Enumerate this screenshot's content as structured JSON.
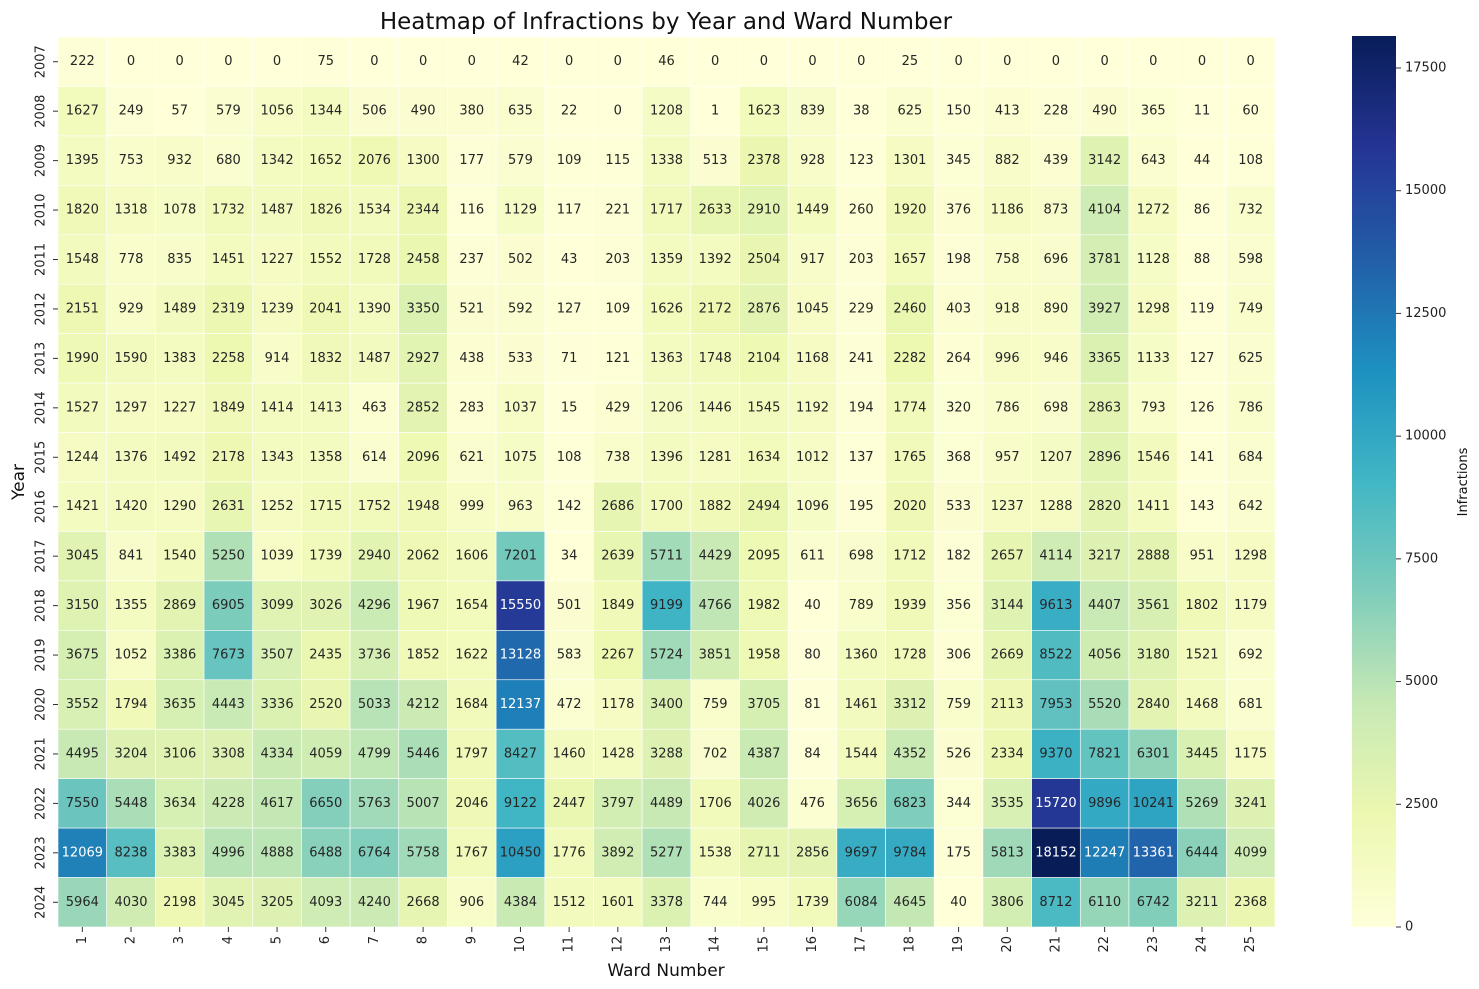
{
  "chart_data": {
    "type": "heatmap",
    "title": "Heatmap of Infractions by Year and Ward Number",
    "xlabel": "Ward Number",
    "ylabel": "Year",
    "colorbar_label": "Infractions",
    "colormap": "YlGnBu",
    "vmin": 0,
    "vmax": 18152,
    "colorbar_ticks": [
      0,
      2500,
      5000,
      7500,
      10000,
      12500,
      15000,
      17500
    ],
    "x_categories": [
      "1",
      "2",
      "3",
      "4",
      "5",
      "6",
      "7",
      "8",
      "9",
      "10",
      "11",
      "12",
      "13",
      "14",
      "15",
      "16",
      "17",
      "18",
      "19",
      "20",
      "21",
      "22",
      "23",
      "24",
      "25"
    ],
    "y_categories": [
      "2007",
      "2008",
      "2009",
      "2010",
      "2011",
      "2012",
      "2013",
      "2014",
      "2015",
      "2016",
      "2017",
      "2018",
      "2019",
      "2020",
      "2021",
      "2022",
      "2023",
      "2024"
    ],
    "values": [
      [
        222,
        0,
        0,
        0,
        0,
        75,
        0,
        0,
        0,
        42,
        0,
        0,
        46,
        0,
        0,
        0,
        0,
        25,
        0,
        0,
        0,
        0,
        0,
        0,
        0
      ],
      [
        1627,
        249,
        57,
        579,
        1056,
        1344,
        506,
        490,
        380,
        635,
        22,
        0,
        1208,
        1,
        1623,
        839,
        38,
        625,
        150,
        413,
        228,
        490,
        365,
        11,
        60
      ],
      [
        1395,
        753,
        932,
        680,
        1342,
        1652,
        2076,
        1300,
        177,
        579,
        109,
        115,
        1338,
        513,
        2378,
        928,
        123,
        1301,
        345,
        882,
        439,
        3142,
        643,
        44,
        108
      ],
      [
        1820,
        1318,
        1078,
        1732,
        1487,
        1826,
        1534,
        2344,
        116,
        1129,
        117,
        221,
        1717,
        2633,
        2910,
        1449,
        260,
        1920,
        376,
        1186,
        873,
        4104,
        1272,
        86,
        732
      ],
      [
        1548,
        778,
        835,
        1451,
        1227,
        1552,
        1728,
        2458,
        237,
        502,
        43,
        203,
        1359,
        1392,
        2504,
        917,
        203,
        1657,
        198,
        758,
        696,
        3781,
        1128,
        88,
        598
      ],
      [
        2151,
        929,
        1489,
        2319,
        1239,
        2041,
        1390,
        3350,
        521,
        592,
        127,
        109,
        1626,
        2172,
        2876,
        1045,
        229,
        2460,
        403,
        918,
        890,
        3927,
        1298,
        119,
        749
      ],
      [
        1990,
        1590,
        1383,
        2258,
        914,
        1832,
        1487,
        2927,
        438,
        533,
        71,
        121,
        1363,
        1748,
        2104,
        1168,
        241,
        2282,
        264,
        996,
        946,
        3365,
        1133,
        127,
        625
      ],
      [
        1527,
        1297,
        1227,
        1849,
        1414,
        1413,
        463,
        2852,
        283,
        1037,
        15,
        429,
        1206,
        1446,
        1545,
        1192,
        194,
        1774,
        320,
        786,
        698,
        2863,
        793,
        126,
        786
      ],
      [
        1244,
        1376,
        1492,
        2178,
        1343,
        1358,
        614,
        2096,
        621,
        1075,
        108,
        738,
        1396,
        1281,
        1634,
        1012,
        137,
        1765,
        368,
        957,
        1207,
        2896,
        1546,
        141,
        684
      ],
      [
        1421,
        1420,
        1290,
        2631,
        1252,
        1715,
        1752,
        1948,
        999,
        963,
        142,
        2686,
        1700,
        1882,
        2494,
        1096,
        195,
        2020,
        533,
        1237,
        1288,
        2820,
        1411,
        143,
        642
      ],
      [
        3045,
        841,
        1540,
        5250,
        1039,
        1739,
        2940,
        2062,
        1606,
        7201,
        34,
        2639,
        5711,
        4429,
        2095,
        611,
        698,
        1712,
        182,
        2657,
        4114,
        3217,
        2888,
        951,
        1298
      ],
      [
        3150,
        1355,
        2869,
        6905,
        3099,
        3026,
        4296,
        1967,
        1654,
        15550,
        501,
        1849,
        9199,
        4766,
        1982,
        40,
        789,
        1939,
        356,
        3144,
        9613,
        4407,
        3561,
        1802,
        1179
      ],
      [
        3675,
        1052,
        3386,
        7673,
        3507,
        2435,
        3736,
        1852,
        1622,
        13128,
        583,
        2267,
        5724,
        3851,
        1958,
        80,
        1360,
        1728,
        306,
        2669,
        8522,
        4056,
        3180,
        1521,
        692
      ],
      [
        3552,
        1794,
        3635,
        4443,
        3336,
        2520,
        5033,
        4212,
        1684,
        12137,
        472,
        1178,
        3400,
        759,
        3705,
        81,
        1461,
        3312,
        759,
        2113,
        7953,
        5520,
        2840,
        1468,
        681
      ],
      [
        4495,
        3204,
        3106,
        3308,
        4334,
        4059,
        4799,
        5446,
        1797,
        8427,
        1460,
        1428,
        3288,
        702,
        4387,
        84,
        1544,
        4352,
        526,
        2334,
        9370,
        7821,
        6301,
        3445,
        1175
      ],
      [
        7550,
        5448,
        3634,
        4228,
        4617,
        6650,
        5763,
        5007,
        2046,
        9122,
        2447,
        3797,
        4489,
        1706,
        4026,
        476,
        3656,
        6823,
        344,
        3535,
        15720,
        9896,
        10241,
        5269,
        3241
      ],
      [
        12069,
        8238,
        3383,
        4996,
        4888,
        6488,
        6764,
        5758,
        1767,
        10450,
        1776,
        3892,
        5277,
        1538,
        2711,
        2856,
        9697,
        9784,
        175,
        5813,
        18152,
        12247,
        13361,
        6444,
        4099
      ],
      [
        5964,
        4030,
        2198,
        3045,
        3205,
        4093,
        4240,
        2668,
        906,
        4384,
        1512,
        1601,
        3378,
        744,
        995,
        1739,
        6084,
        4645,
        40,
        3806,
        8712,
        6110,
        6742,
        3211,
        2368
      ]
    ]
  }
}
